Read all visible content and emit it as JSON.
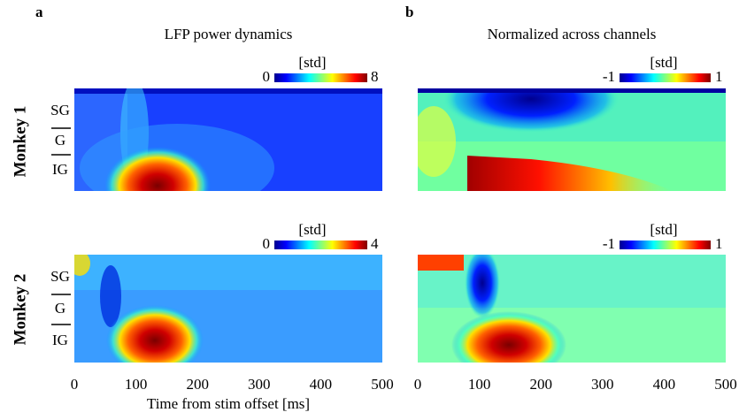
{
  "panels": [
    {
      "letter": "a",
      "title": "LFP power dynamics"
    },
    {
      "letter": "b",
      "title": "Normalized across channels"
    }
  ],
  "rows": [
    {
      "label": "Monkey 1"
    },
    {
      "label": "Monkey 2"
    }
  ],
  "layers": [
    "SG",
    "G",
    "IG"
  ],
  "colorbars": [
    {
      "unit": "[std]",
      "min": 0,
      "max": 8
    },
    {
      "unit": "[std]",
      "min": -1,
      "max": 1
    },
    {
      "unit": "[std]",
      "min": 0,
      "max": 4
    },
    {
      "unit": "[std]",
      "min": -1,
      "max": 1
    }
  ],
  "x_axis": {
    "label": "Time from stim offset [ms]",
    "ticks": [
      0,
      100,
      200,
      300,
      400,
      500
    ]
  }
}
